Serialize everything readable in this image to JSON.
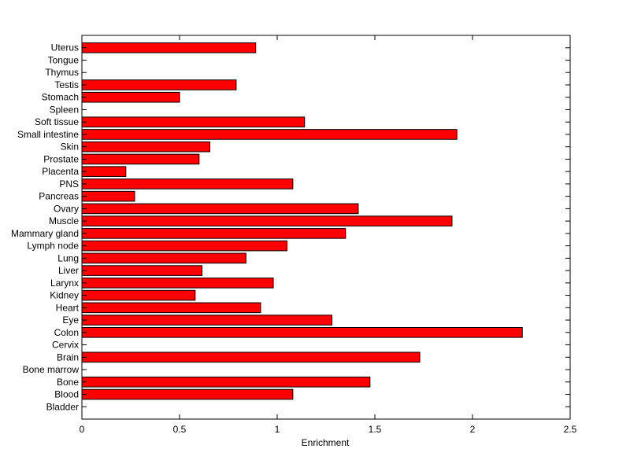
{
  "chart_data": {
    "type": "bar",
    "orientation": "horizontal",
    "xlabel": "Enrichment",
    "ylabel": "",
    "xlim": [
      0,
      2.5
    ],
    "xticks": [
      "0",
      "0.5",
      "1",
      "1.5",
      "2",
      "2.5"
    ],
    "grid": false,
    "bar_color": "#ff0000",
    "bar_edge_color": "#000000",
    "categories": [
      "Bladder",
      "Blood",
      "Bone",
      "Bone marrow",
      "Brain",
      "Cervix",
      "Colon",
      "Eye",
      "Heart",
      "Kidney",
      "Larynx",
      "Liver",
      "Lung",
      "Lymph node",
      "Mammary gland",
      "Muscle",
      "Ovary",
      "Pancreas",
      "PNS",
      "Placenta",
      "Prostate",
      "Skin",
      "Small intestine",
      "Soft tissue",
      "Spleen",
      "Stomach",
      "Testis",
      "Thymus",
      "Tongue",
      "Uterus"
    ],
    "values": [
      0,
      1.08,
      1.475,
      0,
      1.73,
      0,
      2.255,
      1.28,
      0.915,
      0.58,
      0.98,
      0.615,
      0.84,
      1.05,
      1.35,
      1.895,
      1.415,
      0.27,
      1.08,
      0.225,
      0.6,
      0.655,
      1.92,
      1.14,
      0,
      0.5,
      0.79,
      0,
      0,
      0.89
    ]
  }
}
